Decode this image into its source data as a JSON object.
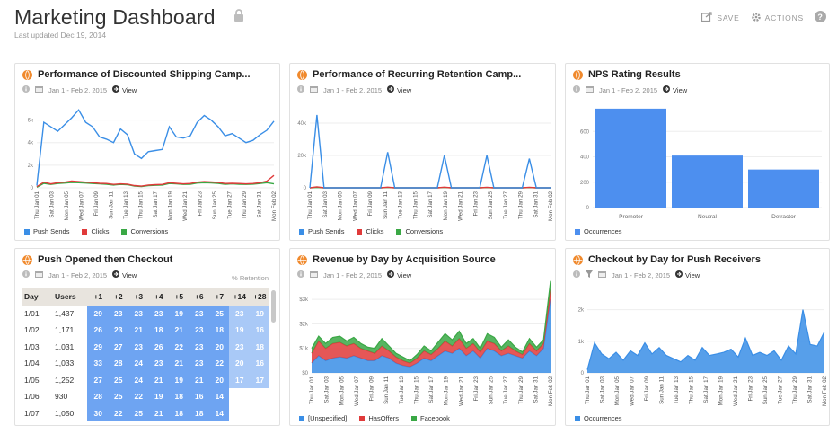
{
  "header": {
    "title": "Marketing Dashboard",
    "updated": "Last updated Dec 19, 2014",
    "save_label": "SAVE",
    "actions_label": "ACTIONS"
  },
  "colors": {
    "blue": "#3a8ee6",
    "red": "#e03a3a",
    "green": "#3aa845",
    "bar": "#4d8fef",
    "cell_dark": "#6ea4f2",
    "cell_light": "#a9c9f7"
  },
  "dates": [
    "Thu Jan 01",
    "Sat Jan 03",
    "Mon Jan 05",
    "Wed Jan 07",
    "Fri Jan 09",
    "Sun Jan 11",
    "Tue Jan 13",
    "Thu Jan 15",
    "Sat Jan 17",
    "Mon Jan 19",
    "Wed Jan 21",
    "Fri Jan 23",
    "Sun Jan 25",
    "Tue Jan 27",
    "Thu Jan 29",
    "Sat Jan 31",
    "Mon Feb 02"
  ],
  "cards": {
    "shipping": {
      "title": "Performance of Discounted Shipping Camp...",
      "date_range": "Jan 1 - Feb 2, 2015",
      "view": "View",
      "legend": [
        "Push Sends",
        "Clicks",
        "Conversions"
      ],
      "chart_data": {
        "type": "line",
        "y_ticks": [
          "0",
          "2k",
          "4k",
          "6k"
        ],
        "ylim": [
          0,
          7000
        ],
        "series": [
          {
            "name": "Push Sends",
            "values": [
              200,
              5800,
              5400,
              5000,
              5600,
              6200,
              6900,
              5800,
              5400,
              4500,
              4300,
              4000,
              5200,
              4700,
              3000,
              2600,
              3200,
              3300,
              3400,
              5400,
              4500,
              4400,
              4600,
              5800,
              6400,
              6000,
              5400,
              4600,
              4800,
              4400,
              4000,
              4200,
              4700,
              5100,
              5900
            ]
          },
          {
            "name": "Clicks",
            "values": [
              100,
              500,
              350,
              450,
              500,
              600,
              550,
              500,
              450,
              400,
              380,
              300,
              350,
              330,
              200,
              150,
              250,
              280,
              300,
              450,
              400,
              350,
              380,
              500,
              550,
              520,
              480,
              380,
              400,
              380,
              350,
              380,
              450,
              600,
              1100
            ]
          },
          {
            "name": "Conversions",
            "values": [
              50,
              400,
              300,
              380,
              420,
              480,
              450,
              420,
              380,
              350,
              320,
              250,
              300,
              280,
              150,
              120,
              200,
              220,
              250,
              380,
              350,
              300,
              320,
              420,
              450,
              430,
              400,
              320,
              350,
              320,
              300,
              330,
              380,
              450,
              350
            ]
          }
        ]
      }
    },
    "retention": {
      "title": "Performance of Recurring Retention Camp...",
      "date_range": "Jan 1 - Feb 2, 2015",
      "view": "View",
      "legend": [
        "Push Sends",
        "Clicks",
        "Conversions"
      ],
      "chart_data": {
        "type": "line",
        "y_ticks": [
          "0",
          "20k",
          "40k"
        ],
        "ylim": [
          0,
          50000
        ],
        "series": [
          {
            "name": "Push Sends",
            "values": [
              0,
              45000,
              0,
              0,
              0,
              0,
              0,
              0,
              0,
              0,
              0,
              22000,
              0,
              0,
              0,
              0,
              0,
              0,
              0,
              20000,
              0,
              0,
              0,
              0,
              0,
              20000,
              0,
              0,
              0,
              0,
              0,
              18000,
              0,
              0,
              0
            ]
          },
          {
            "name": "Clicks",
            "values": [
              0,
              600,
              0,
              0,
              0,
              0,
              0,
              0,
              0,
              0,
              0,
              400,
              0,
              0,
              0,
              0,
              0,
              0,
              0,
              400,
              0,
              0,
              0,
              0,
              0,
              350,
              0,
              0,
              0,
              0,
              0,
              350,
              0,
              0,
              0
            ]
          },
          {
            "name": "Conversions",
            "values": [
              0,
              300,
              0,
              0,
              0,
              0,
              0,
              0,
              0,
              0,
              0,
              200,
              0,
              0,
              0,
              0,
              0,
              0,
              0,
              200,
              0,
              0,
              0,
              0,
              0,
              150,
              0,
              0,
              0,
              0,
              0,
              150,
              0,
              0,
              0
            ]
          }
        ]
      }
    },
    "nps": {
      "title": "NPS Rating Results",
      "date_range": "Jan 1 - Feb 2, 2015",
      "view": "View",
      "legend": [
        "Occurrences"
      ],
      "chart_data": {
        "type": "bar",
        "categories": [
          "Promoter",
          "Neutral",
          "Detractor"
        ],
        "values": [
          780,
          410,
          300
        ],
        "y_ticks": [
          "0",
          "200",
          "400",
          "600"
        ],
        "ylim": [
          0,
          850
        ]
      }
    },
    "cohort": {
      "title": "Push Opened then Checkout",
      "date_range": "Jan 1 - Feb 2, 2015",
      "view": "View",
      "retention_label": "% Retention",
      "columns": [
        "Day",
        "Users",
        "+1",
        "+2",
        "+3",
        "+4",
        "+5",
        "+6",
        "+7",
        "+14",
        "+28"
      ],
      "rows": [
        {
          "day": "1/01",
          "users": "1,437",
          "cells": [
            "29",
            "23",
            "23",
            "23",
            "19",
            "23",
            "25",
            "23",
            "19"
          ]
        },
        {
          "day": "1/02",
          "users": "1,171",
          "cells": [
            "26",
            "23",
            "21",
            "18",
            "21",
            "23",
            "18",
            "19",
            "16"
          ]
        },
        {
          "day": "1/03",
          "users": "1,031",
          "cells": [
            "29",
            "27",
            "23",
            "26",
            "22",
            "23",
            "20",
            "23",
            "18"
          ]
        },
        {
          "day": "1/04",
          "users": "1,033",
          "cells": [
            "33",
            "28",
            "24",
            "23",
            "21",
            "23",
            "22",
            "20",
            "16"
          ]
        },
        {
          "day": "1/05",
          "users": "1,252",
          "cells": [
            "27",
            "25",
            "24",
            "21",
            "19",
            "21",
            "20",
            "17",
            "17"
          ]
        },
        {
          "day": "1/06",
          "users": "930",
          "cells": [
            "28",
            "25",
            "22",
            "19",
            "18",
            "16",
            "14"
          ]
        },
        {
          "day": "1/07",
          "users": "1,050",
          "cells": [
            "30",
            "22",
            "25",
            "21",
            "18",
            "18",
            "14"
          ]
        }
      ]
    },
    "revenue": {
      "title": "Revenue by Day by Acquisition Source",
      "date_range": "Jan 1 - Feb 2, 2015",
      "view": "View",
      "legend": [
        "[Unspecified]",
        "HasOffers",
        "Facebook"
      ],
      "chart_data": {
        "type": "area",
        "y_ticks": [
          "$0",
          "$1k",
          "$2k",
          "$3k"
        ],
        "ylim": [
          0,
          3300
        ],
        "series": [
          {
            "name": "[Unspecified]",
            "values": [
              400,
              700,
              500,
              600,
              650,
              600,
              700,
              600,
              500,
              500,
              700,
              600,
              400,
              300,
              250,
              400,
              600,
              500,
              700,
              900,
              800,
              1000,
              700,
              900,
              600,
              1000,
              900,
              700,
              800,
              700,
              600,
              900,
              700,
              1000,
              3000
            ]
          },
          {
            "name": "HasOffers",
            "values": [
              400,
              600,
              500,
              600,
              600,
              500,
              500,
              400,
              400,
              300,
              400,
              300,
              250,
              200,
              150,
              200,
              300,
              250,
              300,
              400,
              300,
              400,
              300,
              300,
              250,
              300,
              300,
              200,
              300,
              200,
              150,
              300,
              200,
              200,
              400
            ]
          },
          {
            "name": "Facebook",
            "values": [
              200,
              200,
              200,
              250,
              250,
              200,
              250,
              200,
              150,
              200,
              300,
              200,
              150,
              150,
              100,
              150,
              200,
              150,
              250,
              300,
              250,
              300,
              200,
              200,
              150,
              300,
              250,
              150,
              250,
              150,
              100,
              200,
              150,
              150,
              350
            ]
          }
        ]
      }
    },
    "checkout": {
      "title": "Checkout by Day for Push Receivers",
      "date_range": "Jan 1 - Feb 2, 2015",
      "view": "View",
      "legend": [
        "Occurrences"
      ],
      "chart_data": {
        "type": "area",
        "y_ticks": [
          "0",
          "1k",
          "2k"
        ],
        "ylim": [
          0,
          2500
        ],
        "series": [
          {
            "name": "Occurrences",
            "values": [
              100,
              950,
              600,
              450,
              650,
              400,
              700,
              550,
              950,
              600,
              800,
              550,
              450,
              350,
              550,
              400,
              800,
              550,
              600,
              650,
              750,
              500,
              1100,
              550,
              650,
              550,
              700,
              400,
              850,
              600,
              2000,
              900,
              850,
              1300
            ]
          }
        ]
      }
    }
  }
}
